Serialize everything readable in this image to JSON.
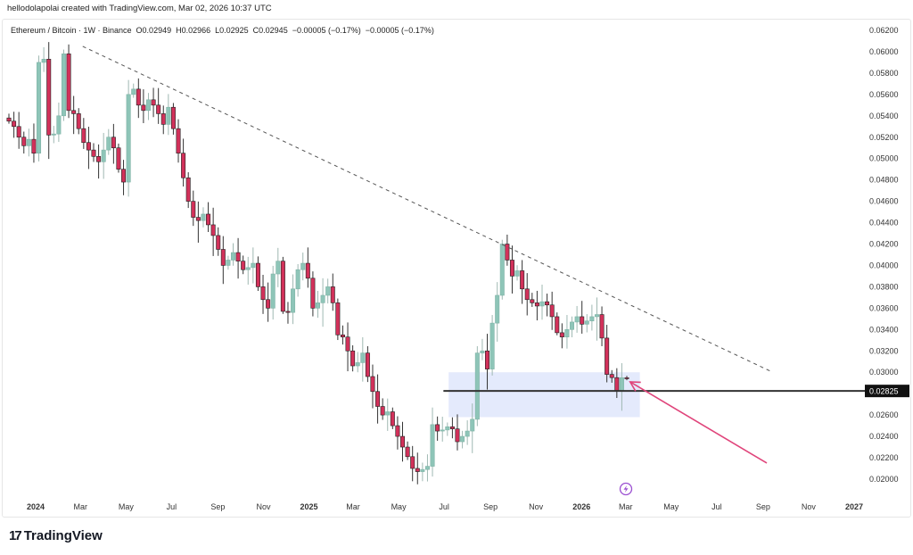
{
  "header": {
    "credit": "hellodolapolai created with TradingView.com, Mar 02, 2026 10:37 UTC",
    "legend": "Ethereum / Bitcoin · 1W · Binance  O0.02949  H0.02966  L0.02925  C0.02945  −0.00005 (−0.17%)  −0.00005 (−0.17%)"
  },
  "footer": {
    "logo_text": "TradingView",
    "logo_mark": "17"
  },
  "colors": {
    "up": "#8ec5b8",
    "down": "#d2315a",
    "trendline": "#555555",
    "zone": "#dfe6fb",
    "level": "#333333",
    "arrow": "#e0457b",
    "icon": "#9b4fd1"
  },
  "icons": {
    "lightning": "lightning-icon"
  },
  "chart_data": {
    "type": "candlestick",
    "symbol": "Ethereum / Bitcoin",
    "interval": "1W",
    "exchange": "Binance",
    "ylim": [
      0.019,
      0.062
    ],
    "y_ticks": [
      "0.06200",
      "0.06000",
      "0.05800",
      "0.05600",
      "0.05400",
      "0.05200",
      "0.05000",
      "0.04800",
      "0.04600",
      "0.04400",
      "0.04200",
      "0.04000",
      "0.03800",
      "0.03600",
      "0.03400",
      "0.03200",
      "0.03000",
      "0.02600",
      "0.02400",
      "0.02200",
      "0.02000"
    ],
    "x_ticks": [
      {
        "label": "2024",
        "date": "2024-01-01",
        "bold": true
      },
      {
        "label": "Mar",
        "date": "2024-03-01"
      },
      {
        "label": "May",
        "date": "2024-05-01"
      },
      {
        "label": "Jul",
        "date": "2024-07-01"
      },
      {
        "label": "Sep",
        "date": "2024-09-01"
      },
      {
        "label": "Nov",
        "date": "2024-11-01"
      },
      {
        "label": "2025",
        "date": "2025-01-01",
        "bold": true
      },
      {
        "label": "Mar",
        "date": "2025-03-01"
      },
      {
        "label": "May",
        "date": "2025-05-01"
      },
      {
        "label": "Jul",
        "date": "2025-07-01"
      },
      {
        "label": "Sep",
        "date": "2025-09-01"
      },
      {
        "label": "Nov",
        "date": "2025-11-01"
      },
      {
        "label": "2026",
        "date": "2026-01-01",
        "bold": true
      },
      {
        "label": "Mar",
        "date": "2026-03-01"
      },
      {
        "label": "May",
        "date": "2026-05-01"
      },
      {
        "label": "Jul",
        "date": "2026-07-01"
      },
      {
        "label": "Sep",
        "date": "2026-09-01"
      },
      {
        "label": "Nov",
        "date": "2026-11-01"
      },
      {
        "label": "2027",
        "date": "2027-01-01",
        "bold": true
      }
    ],
    "closes": [
      0.0535,
      0.053,
      0.052,
      0.0512,
      0.0518,
      0.0505,
      0.059,
      0.0593,
      0.0522,
      0.0523,
      0.054,
      0.0598,
      0.0545,
      0.0542,
      0.0528,
      0.0515,
      0.0508,
      0.0502,
      0.0497,
      0.0508,
      0.052,
      0.051,
      0.049,
      0.0478,
      0.056,
      0.0565,
      0.055,
      0.0545,
      0.0555,
      0.055,
      0.0542,
      0.0532,
      0.0548,
      0.0528,
      0.0505,
      0.0482,
      0.046,
      0.0445,
      0.0442,
      0.0448,
      0.0438,
      0.0428,
      0.0415,
      0.04,
      0.0405,
      0.0412,
      0.0404,
      0.0396,
      0.0398,
      0.0402,
      0.038,
      0.0368,
      0.036,
      0.0392,
      0.0404,
      0.0357,
      0.0356,
      0.0378,
      0.0396,
      0.0402,
      0.0388,
      0.036,
      0.0365,
      0.0372,
      0.038,
      0.0365,
      0.0335,
      0.0333,
      0.032,
      0.0306,
      0.0309,
      0.0318,
      0.0296,
      0.0282,
      0.0268,
      0.026,
      0.0263,
      0.025,
      0.024,
      0.023,
      0.0221,
      0.021,
      0.0207,
      0.0209,
      0.0212,
      0.0251,
      0.0245,
      0.0246,
      0.0249,
      0.0247,
      0.0235,
      0.024,
      0.0245,
      0.0256,
      0.0318,
      0.032,
      0.0303,
      0.0346,
      0.0372,
      0.042,
      0.0405,
      0.039,
      0.0395,
      0.0378,
      0.0368,
      0.0365,
      0.0362,
      0.0366,
      0.0363,
      0.0352,
      0.0337,
      0.0333,
      0.034,
      0.0347,
      0.0352,
      0.0345,
      0.0348,
      0.0352,
      0.0354,
      0.0332,
      0.0298,
      0.0295,
      0.0283,
      0.02949,
      0.02945
    ],
    "last_candle": {
      "open": 0.02949,
      "high": 0.02966,
      "low": 0.02925,
      "close": 0.02945
    },
    "annotations": {
      "trendline": {
        "style": "dashed",
        "from": {
          "date": "2024-03-04",
          "price": 0.0605
        },
        "to": {
          "date": "2026-09-14",
          "price": 0.03
        }
      },
      "zone": {
        "from_date": "2025-07-07",
        "to_date": "2026-03-20",
        "top": 0.03,
        "bottom": 0.0258
      },
      "level": {
        "price": 0.02825,
        "label": "0.02825",
        "from_date": "2025-06-30"
      },
      "arrow": {
        "from": {
          "date": "2026-09-06",
          "price": 0.0215
        },
        "to": {
          "date": "2026-03-07",
          "price": 0.0291
        }
      }
    }
  }
}
